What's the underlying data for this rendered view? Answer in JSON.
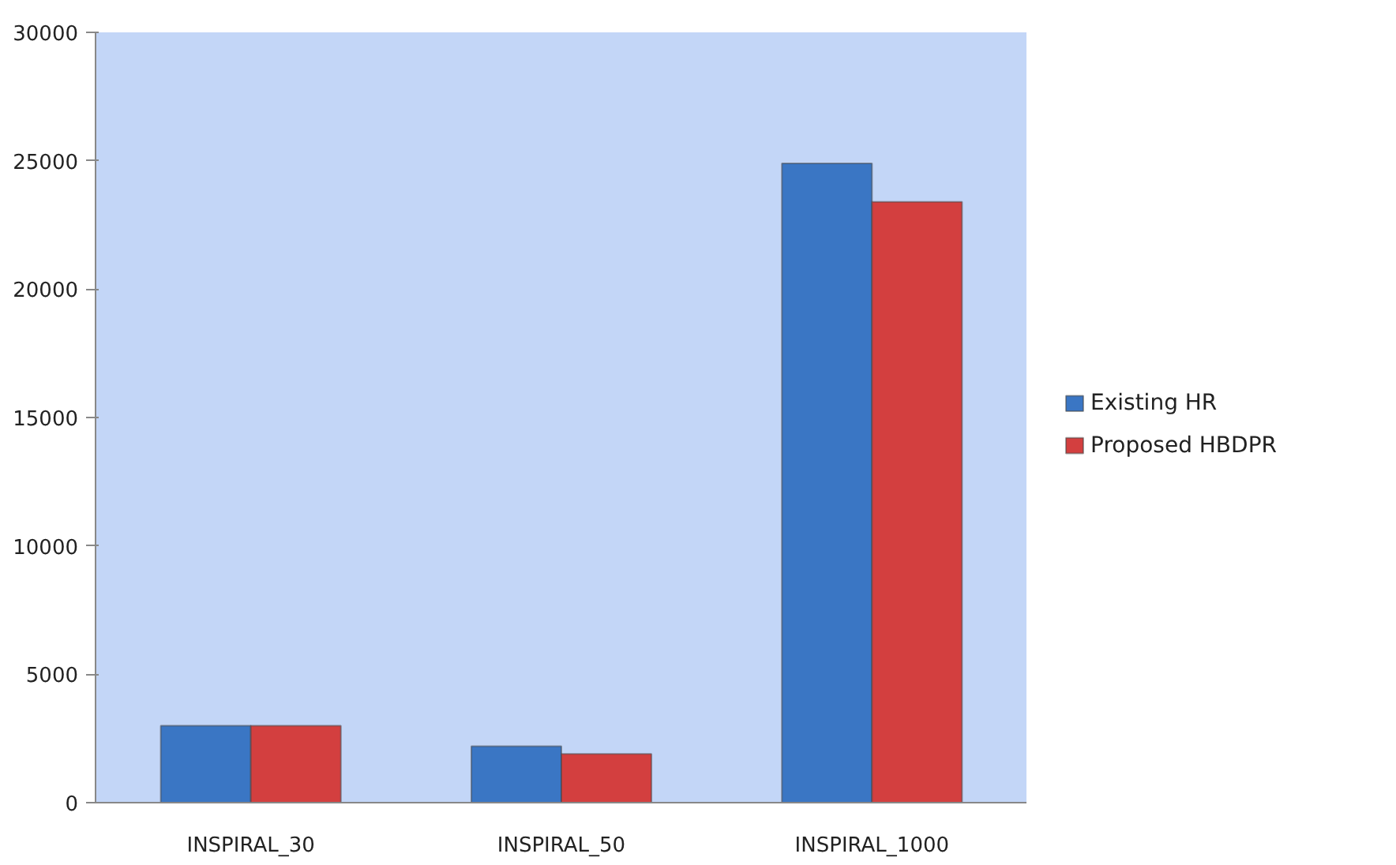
{
  "chart_data": {
    "type": "bar",
    "categories": [
      "INSPIRAL_30",
      "INSPIRAL_50",
      "INSPIRAL_1000"
    ],
    "series": [
      {
        "name": "Existing HR",
        "color": "#3a76c4",
        "values": [
          3000,
          2200,
          24900
        ]
      },
      {
        "name": "Proposed HBDPR",
        "color": "#d33f3f",
        "values": [
          3000,
          1900,
          23400
        ]
      }
    ],
    "ylim": [
      0,
      30000
    ],
    "yticks": [
      0,
      5000,
      10000,
      15000,
      20000,
      25000,
      30000
    ],
    "grid": false,
    "legend": "right"
  }
}
